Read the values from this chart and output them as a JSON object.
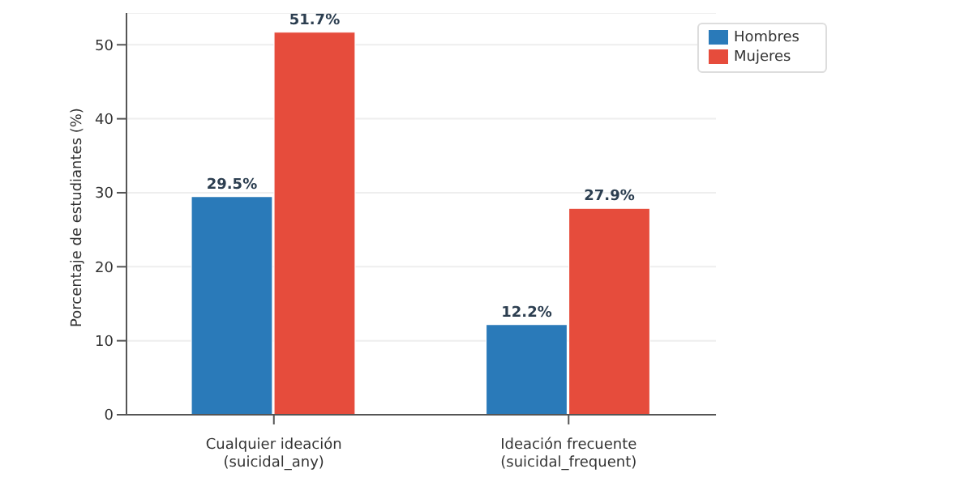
{
  "chart_data": {
    "type": "bar",
    "ylabel": "Porcentaje de estudiantes (%)",
    "categories": [
      "Cualquier ideación\n(suicidal_any)",
      "Ideación frecuente\n(suicidal_frequent)"
    ],
    "series": [
      {
        "name": "Hombres",
        "color": "#2a7ab9",
        "values": [
          29.5,
          12.2
        ],
        "value_labels": [
          "29.5%",
          "12.2%"
        ]
      },
      {
        "name": "Mujeres",
        "color": "#e64c3c",
        "values": [
          51.7,
          27.9
        ],
        "value_labels": [
          "51.7%",
          "27.9%"
        ]
      }
    ],
    "ylim": [
      0,
      54.3
    ],
    "yticks": [
      0,
      10,
      20,
      30,
      40,
      50
    ],
    "grid": "y",
    "legend": "top right"
  }
}
